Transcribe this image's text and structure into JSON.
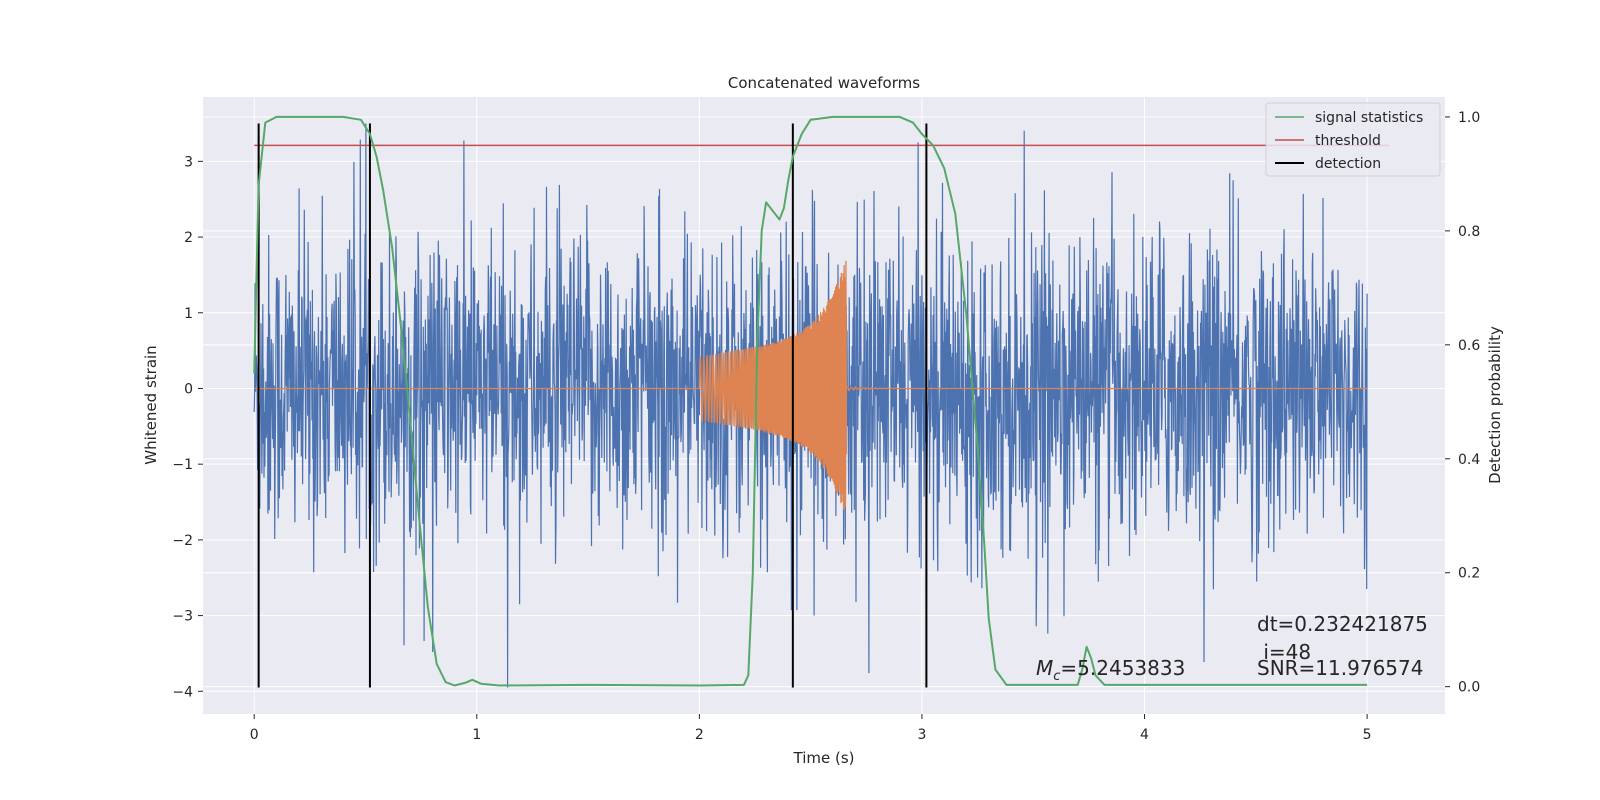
{
  "chart_data": {
    "type": "line",
    "title": "Concatenated waveforms",
    "xlabel": "Time (s)",
    "ylabel": "Whitened strain",
    "y2label": "Detection probability",
    "xlim": [
      -0.23,
      5.35
    ],
    "ylim": [
      -4.3,
      3.85
    ],
    "y2lim": [
      -0.048,
      1.035
    ],
    "xticks": [
      0,
      1,
      2,
      3,
      4,
      5
    ],
    "xtick_labels": [
      "0",
      "1",
      "2",
      "3",
      "4",
      "5"
    ],
    "yticks": [
      -4,
      -3,
      -2,
      -1,
      0,
      1,
      2,
      3
    ],
    "ytick_labels": [
      "−4",
      "−3",
      "−2",
      "−1",
      "0",
      "1",
      "2",
      "3"
    ],
    "y2ticks": [
      0.0,
      0.2,
      0.4,
      0.6,
      0.8,
      1.0
    ],
    "y2tick_labels": [
      "0.0",
      "0.2",
      "0.4",
      "0.6",
      "0.8",
      "1.0"
    ],
    "grid": true,
    "legend_position": "top-right",
    "colors": {
      "strain": "#4c72b0",
      "template": "#dd8452",
      "signal": "#55a868",
      "threshold": "#c44e52",
      "detection": "#000000",
      "plot_bg": "#eaeaf2",
      "grid": "#ffffff"
    },
    "series": [
      {
        "name": "",
        "role": "noise",
        "style": "dense noise trace, range about −3.9 to 3.5",
        "x_range": [
          0,
          5
        ],
        "y_range": [
          -3.95,
          3.5
        ]
      },
      {
        "name": "",
        "role": "template",
        "style": "chirp between t=2.0 and t=2.66",
        "x_range": [
          0,
          5
        ],
        "y_range": [
          -1.45,
          1.75
        ]
      },
      {
        "name": "signal statistics",
        "axis": "right",
        "points": [
          [
            0.0,
            0.55
          ],
          [
            0.02,
            0.88
          ],
          [
            0.05,
            0.99
          ],
          [
            0.1,
            1.0
          ],
          [
            0.4,
            1.0
          ],
          [
            0.48,
            0.995
          ],
          [
            0.52,
            0.97
          ],
          [
            0.55,
            0.93
          ],
          [
            0.58,
            0.87
          ],
          [
            0.62,
            0.77
          ],
          [
            0.66,
            0.63
          ],
          [
            0.7,
            0.47
          ],
          [
            0.74,
            0.3
          ],
          [
            0.78,
            0.14
          ],
          [
            0.82,
            0.04
          ],
          [
            0.86,
            0.008
          ],
          [
            0.9,
            0.002
          ],
          [
            0.95,
            0.007
          ],
          [
            0.98,
            0.012
          ],
          [
            1.02,
            0.005
          ],
          [
            1.1,
            0.002
          ],
          [
            1.5,
            0.003
          ],
          [
            2.0,
            0.002
          ],
          [
            2.2,
            0.003
          ],
          [
            2.22,
            0.02
          ],
          [
            2.24,
            0.2
          ],
          [
            2.26,
            0.6
          ],
          [
            2.28,
            0.8
          ],
          [
            2.3,
            0.85
          ],
          [
            2.32,
            0.84
          ],
          [
            2.34,
            0.83
          ],
          [
            2.36,
            0.82
          ],
          [
            2.38,
            0.84
          ],
          [
            2.4,
            0.89
          ],
          [
            2.42,
            0.93
          ],
          [
            2.46,
            0.97
          ],
          [
            2.5,
            0.995
          ],
          [
            2.6,
            1.0
          ],
          [
            2.9,
            1.0
          ],
          [
            2.96,
            0.99
          ],
          [
            3.0,
            0.97
          ],
          [
            3.05,
            0.95
          ],
          [
            3.1,
            0.91
          ],
          [
            3.15,
            0.83
          ],
          [
            3.2,
            0.65
          ],
          [
            3.25,
            0.42
          ],
          [
            3.28,
            0.25
          ],
          [
            3.3,
            0.12
          ],
          [
            3.33,
            0.03
          ],
          [
            3.38,
            0.003
          ],
          [
            3.7,
            0.003
          ],
          [
            3.72,
            0.03
          ],
          [
            3.74,
            0.07
          ],
          [
            3.76,
            0.05
          ],
          [
            3.78,
            0.02
          ],
          [
            3.82,
            0.003
          ],
          [
            5.0,
            0.003
          ]
        ]
      },
      {
        "name": "threshold",
        "axis": "right",
        "points": [
          [
            0.0,
            0.95
          ],
          [
            5.1,
            0.95
          ]
        ]
      },
      {
        "name": "detection",
        "axis": "left",
        "vlines_x": [
          0.02,
          0.52,
          2.42,
          3.02
        ],
        "vline_y": [
          -3.95,
          3.5
        ]
      }
    ],
    "legend": [
      "signal statistics",
      "threshold",
      "detection"
    ],
    "annotations": {
      "mc_label": "M",
      "mc_sub": "c",
      "mc_value": "=5.2453833",
      "dt": "dt=0.232421875",
      "i": " i=48",
      "snr": "SNR=11.976574"
    }
  }
}
